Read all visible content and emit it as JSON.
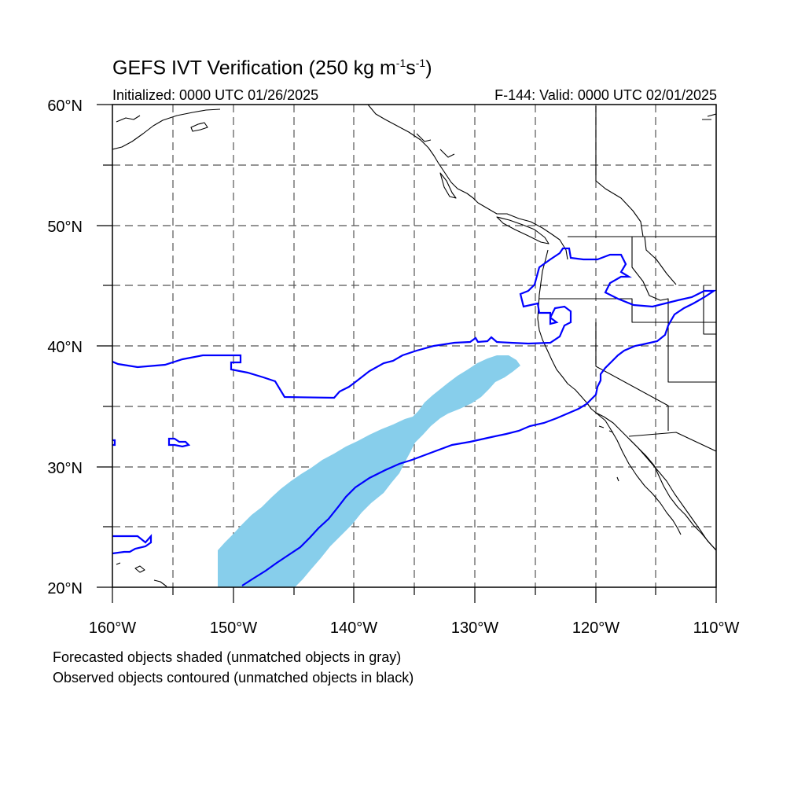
{
  "header": {
    "title_main": "GEFS IVT Verification (250 kg m",
    "title_exp1": "-1",
    "title_mid": "s",
    "title_exp2": "-1",
    "title_end": ")",
    "initialized": "Initialized: 0000 UTC 01/26/2025",
    "valid": "F-144: Valid: 0000 UTC 02/01/2025"
  },
  "map": {
    "lon_range": [
      -160,
      -110
    ],
    "lat_range": [
      20,
      60
    ],
    "grid": true,
    "lat_labels": [
      "60°N",
      "50°N",
      "40°N",
      "30°N",
      "20°N"
    ],
    "lon_labels": [
      "160°W",
      "150°W",
      "140°W",
      "130°W",
      "120°W",
      "110°W"
    ],
    "forecast_color": "#87ceeb",
    "observed_color": "#0000ff",
    "coast_color": "#000000"
  },
  "footer": {
    "note1": "Forecasted objects shaded (unmatched objects in gray)",
    "note2": "Observed objects contoured (unmatched objects in black)"
  }
}
